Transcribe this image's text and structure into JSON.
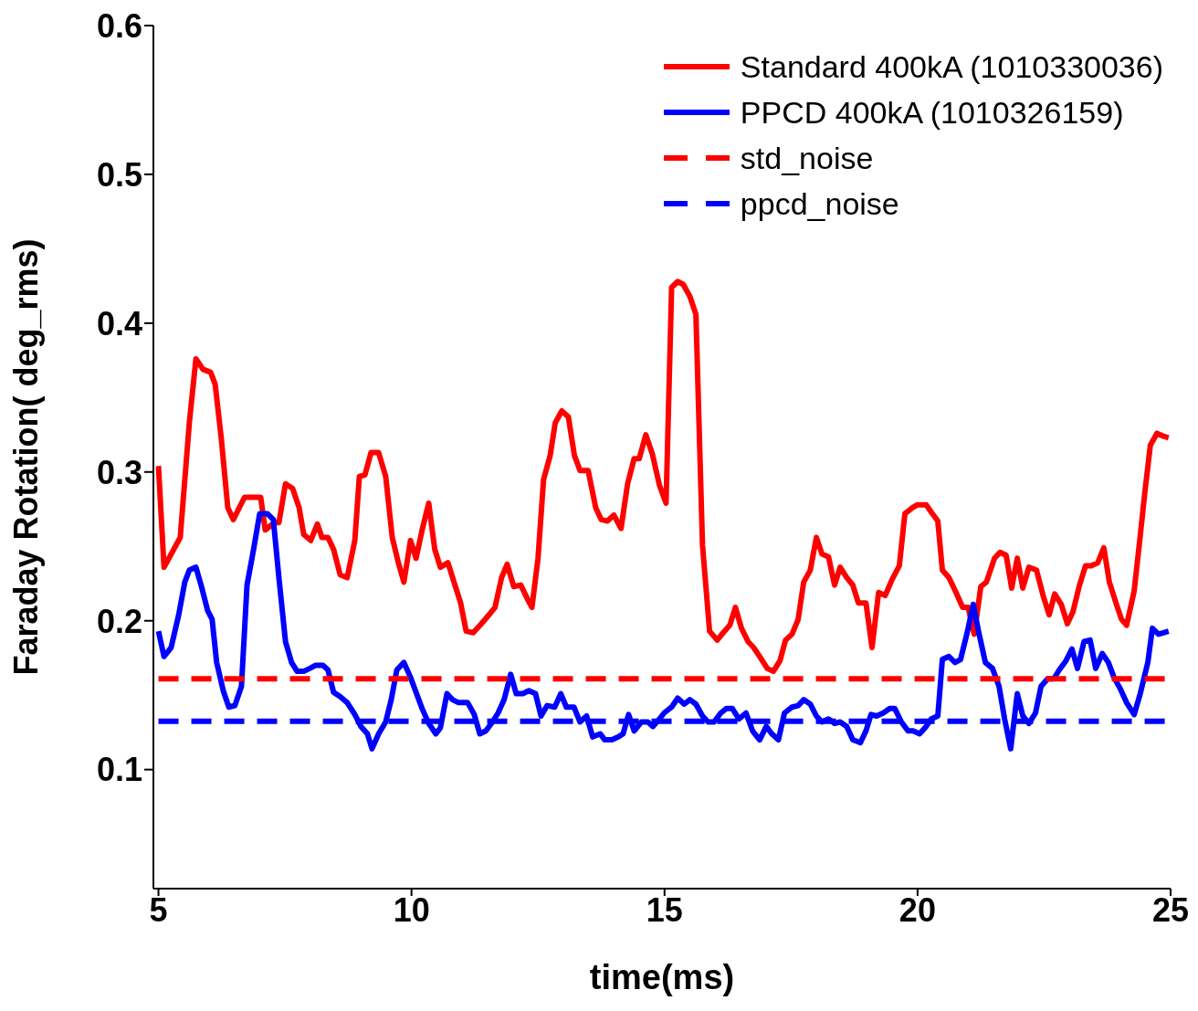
{
  "chart_data": {
    "type": "line",
    "xlabel": "time(ms)",
    "ylabel": "Faraday Rotation( deg_rms)",
    "xlim": [
      4.9,
      25
    ],
    "xticks": [
      5,
      10,
      15,
      20,
      25
    ],
    "ylim": [
      0.02,
      0.6
    ],
    "yticks": [
      0.1,
      0.2,
      0.3,
      0.4,
      0.5,
      0.6
    ],
    "legend": "top right",
    "grid": false,
    "series": [
      {
        "name": "Standard 400kA (1010330036)",
        "color": "#ff0000",
        "line_style": "solid",
        "x": [
          5.0,
          5.11,
          5.43,
          5.61,
          5.74,
          5.88,
          6.03,
          6.12,
          6.24,
          6.37,
          6.48,
          6.7,
          7.02,
          7.11,
          7.29,
          7.38,
          7.51,
          7.65,
          7.78,
          7.87,
          8.01,
          8.14,
          8.23,
          8.35,
          8.46,
          8.59,
          8.73,
          8.88,
          8.97,
          9.08,
          9.2,
          9.35,
          9.49,
          9.62,
          9.74,
          9.85,
          9.98,
          10.09,
          10.21,
          10.34,
          10.46,
          10.57,
          10.72,
          10.84,
          10.97,
          11.08,
          11.22,
          11.38,
          11.53,
          11.65,
          11.78,
          11.89,
          12.02,
          12.16,
          12.3,
          12.38,
          12.5,
          12.61,
          12.74,
          12.84,
          12.97,
          13.1,
          13.22,
          13.33,
          13.49,
          13.64,
          13.75,
          13.87,
          14.0,
          14.14,
          14.27,
          14.4,
          14.5,
          14.63,
          14.76,
          14.9,
          15.03,
          15.14,
          15.26,
          15.37,
          15.5,
          15.62,
          15.75,
          15.89,
          16.04,
          16.16,
          16.29,
          16.4,
          16.52,
          16.65,
          16.76,
          16.88,
          17.03,
          17.15,
          17.28,
          17.39,
          17.52,
          17.64,
          17.75,
          17.88,
          18.0,
          18.11,
          18.24,
          18.36,
          18.47,
          18.6,
          18.72,
          18.83,
          18.98,
          19.1,
          19.23,
          19.36,
          19.5,
          19.64,
          19.75,
          19.9,
          20.0,
          20.17,
          20.27,
          20.4,
          20.49,
          20.62,
          20.76,
          20.89,
          21.0,
          21.12,
          21.25,
          21.36,
          21.52,
          21.63,
          21.75,
          21.86,
          21.97,
          22.08,
          22.2,
          22.35,
          22.48,
          22.6,
          22.71,
          22.84,
          22.96,
          23.07,
          23.2,
          23.32,
          23.43,
          23.56,
          23.68,
          23.79,
          23.92,
          24.03,
          24.13,
          24.28,
          24.39,
          24.49,
          24.6,
          24.73,
          24.86,
          24.96
        ],
        "values": [
          0.304,
          0.236,
          0.256,
          0.333,
          0.376,
          0.369,
          0.367,
          0.359,
          0.323,
          0.276,
          0.268,
          0.283,
          0.283,
          0.261,
          0.266,
          0.266,
          0.292,
          0.289,
          0.276,
          0.258,
          0.254,
          0.265,
          0.256,
          0.256,
          0.248,
          0.231,
          0.229,
          0.254,
          0.297,
          0.298,
          0.313,
          0.313,
          0.297,
          0.256,
          0.239,
          0.226,
          0.254,
          0.242,
          0.261,
          0.279,
          0.248,
          0.236,
          0.239,
          0.226,
          0.212,
          0.193,
          0.192,
          0.198,
          0.204,
          0.209,
          0.229,
          0.238,
          0.223,
          0.224,
          0.214,
          0.209,
          0.242,
          0.295,
          0.311,
          0.333,
          0.341,
          0.337,
          0.311,
          0.301,
          0.301,
          0.276,
          0.268,
          0.267,
          0.271,
          0.262,
          0.292,
          0.309,
          0.309,
          0.325,
          0.312,
          0.291,
          0.279,
          0.424,
          0.428,
          0.426,
          0.418,
          0.406,
          0.251,
          0.193,
          0.187,
          0.192,
          0.197,
          0.209,
          0.195,
          0.186,
          0.182,
          0.176,
          0.168,
          0.166,
          0.173,
          0.187,
          0.191,
          0.201,
          0.226,
          0.234,
          0.256,
          0.245,
          0.243,
          0.224,
          0.236,
          0.229,
          0.224,
          0.212,
          0.212,
          0.182,
          0.219,
          0.217,
          0.228,
          0.237,
          0.272,
          0.276,
          0.278,
          0.278,
          0.273,
          0.267,
          0.234,
          0.229,
          0.219,
          0.209,
          0.209,
          0.191,
          0.223,
          0.226,
          0.242,
          0.246,
          0.244,
          0.222,
          0.242,
          0.222,
          0.236,
          0.234,
          0.217,
          0.204,
          0.218,
          0.211,
          0.198,
          0.206,
          0.224,
          0.237,
          0.237,
          0.239,
          0.249,
          0.226,
          0.212,
          0.201,
          0.197,
          0.22,
          0.254,
          0.286,
          0.318,
          0.326,
          0.324,
          0.323
        ]
      },
      {
        "name": "PPCD 400kA (1010326159)",
        "color": "#0000ff",
        "line_style": "solid",
        "x": [
          5.0,
          5.11,
          5.25,
          5.4,
          5.52,
          5.61,
          5.74,
          5.85,
          5.97,
          6.06,
          6.15,
          6.28,
          6.39,
          6.51,
          6.64,
          6.75,
          6.88,
          7.0,
          7.15,
          7.27,
          7.38,
          7.51,
          7.63,
          7.74,
          7.87,
          7.99,
          8.1,
          8.25,
          8.35,
          8.46,
          8.59,
          8.73,
          8.88,
          9.0,
          9.13,
          9.22,
          9.35,
          9.49,
          9.6,
          9.71,
          9.85,
          9.98,
          10.1,
          10.21,
          10.34,
          10.48,
          10.57,
          10.7,
          10.81,
          10.93,
          11.11,
          11.24,
          11.35,
          11.47,
          11.6,
          11.71,
          11.83,
          11.96,
          12.07,
          12.2,
          12.32,
          12.45,
          12.56,
          12.68,
          12.83,
          12.95,
          13.06,
          13.21,
          13.33,
          13.46,
          13.58,
          13.73,
          13.82,
          13.96,
          14.09,
          14.18,
          14.29,
          14.4,
          14.54,
          14.67,
          14.77,
          14.9,
          14.99,
          15.14,
          15.26,
          15.39,
          15.5,
          15.62,
          15.75,
          15.86,
          15.98,
          16.11,
          16.22,
          16.34,
          16.47,
          16.61,
          16.74,
          16.88,
          17.01,
          17.12,
          17.25,
          17.37,
          17.52,
          17.64,
          17.75,
          17.88,
          18.0,
          18.11,
          18.24,
          18.36,
          18.47,
          18.6,
          18.72,
          18.87,
          18.98,
          19.08,
          19.19,
          19.32,
          19.45,
          19.55,
          19.68,
          19.81,
          19.91,
          20.04,
          20.17,
          20.27,
          20.4,
          20.49,
          20.62,
          20.74,
          20.85,
          20.98,
          21.1,
          21.21,
          21.34,
          21.48,
          21.61,
          21.72,
          21.84,
          21.97,
          22.08,
          22.2,
          22.33,
          22.44,
          22.57,
          22.69,
          22.8,
          22.93,
          23.05,
          23.16,
          23.29,
          23.41,
          23.52,
          23.65,
          23.77,
          23.88,
          24.01,
          24.13,
          24.28,
          24.4,
          24.55,
          24.64,
          24.76,
          24.96
        ],
        "values": [
          0.193,
          0.176,
          0.182,
          0.204,
          0.226,
          0.234,
          0.236,
          0.223,
          0.207,
          0.201,
          0.172,
          0.153,
          0.142,
          0.143,
          0.156,
          0.224,
          0.248,
          0.272,
          0.272,
          0.268,
          0.229,
          0.186,
          0.172,
          0.166,
          0.166,
          0.168,
          0.17,
          0.17,
          0.167,
          0.152,
          0.149,
          0.145,
          0.137,
          0.129,
          0.124,
          0.114,
          0.124,
          0.132,
          0.147,
          0.167,
          0.172,
          0.162,
          0.151,
          0.141,
          0.131,
          0.124,
          0.128,
          0.151,
          0.147,
          0.145,
          0.145,
          0.137,
          0.124,
          0.126,
          0.132,
          0.138,
          0.147,
          0.164,
          0.151,
          0.151,
          0.153,
          0.151,
          0.136,
          0.143,
          0.142,
          0.151,
          0.142,
          0.142,
          0.132,
          0.136,
          0.122,
          0.124,
          0.12,
          0.12,
          0.122,
          0.124,
          0.137,
          0.126,
          0.132,
          0.132,
          0.129,
          0.134,
          0.138,
          0.142,
          0.148,
          0.144,
          0.147,
          0.144,
          0.136,
          0.132,
          0.132,
          0.138,
          0.141,
          0.141,
          0.134,
          0.138,
          0.126,
          0.12,
          0.129,
          0.124,
          0.12,
          0.138,
          0.142,
          0.143,
          0.147,
          0.144,
          0.136,
          0.132,
          0.134,
          0.131,
          0.132,
          0.129,
          0.12,
          0.118,
          0.126,
          0.137,
          0.136,
          0.138,
          0.141,
          0.141,
          0.132,
          0.126,
          0.126,
          0.124,
          0.129,
          0.134,
          0.136,
          0.174,
          0.176,
          0.172,
          0.174,
          0.192,
          0.211,
          0.192,
          0.172,
          0.168,
          0.156,
          0.134,
          0.114,
          0.151,
          0.136,
          0.131,
          0.138,
          0.156,
          0.161,
          0.161,
          0.167,
          0.173,
          0.181,
          0.168,
          0.186,
          0.187,
          0.168,
          0.178,
          0.172,
          0.162,
          0.154,
          0.145,
          0.137,
          0.151,
          0.172,
          0.195,
          0.191,
          0.193
        ]
      },
      {
        "name": "std_noise",
        "color": "#ff0000",
        "line_style": "dashed",
        "x": [
          5,
          25
        ],
        "values": [
          0.161,
          0.161
        ]
      },
      {
        "name": "ppcd_noise",
        "color": "#0000ff",
        "line_style": "dashed",
        "x": [
          5,
          25
        ],
        "values": [
          0.1325,
          0.1325
        ]
      }
    ]
  }
}
